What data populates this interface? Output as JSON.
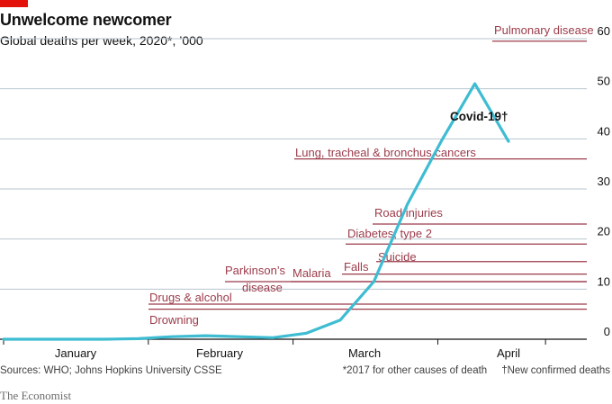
{
  "header": {
    "title": "Unwelcome newcomer",
    "subtitle": "Global deaths per week, 2020*, ’000"
  },
  "footer": {
    "source": "Sources: WHO; Johns Hopkins University CSSE",
    "footnote": "*2017 for other causes of death",
    "footnote2": "†New confirmed deaths",
    "brand": "The Economist"
  },
  "colors": {
    "covid": "#3ebcd2",
    "reference": "#9b3b4a",
    "grid": "#b7c6cf",
    "axis": "#121212"
  },
  "chart_data": {
    "type": "line",
    "title": "Unwelcome newcomer",
    "subtitle": "Global deaths per week, 2020*, ’000",
    "xlabel": "",
    "ylabel": "",
    "x_ticks": [
      "January",
      "February",
      "March",
      "April"
    ],
    "ylim": [
      0,
      60
    ],
    "y_ticks": [
      0,
      10,
      20,
      30,
      40,
      50,
      60
    ],
    "y_tick_labels": [
      "0",
      "10",
      "20",
      "30",
      "40",
      "50",
      "60"
    ],
    "grid": true,
    "series": [
      {
        "name": "Covid-19†",
        "x": [
          "Jan 1",
          "Jan 8",
          "Jan 15",
          "Jan 22",
          "Jan 29",
          "Feb 5",
          "Feb 12",
          "Feb 19",
          "Feb 26",
          "Mar 4",
          "Mar 11",
          "Mar 18",
          "Mar 25",
          "Apr 1",
          "Apr 8",
          "Apr 15"
        ],
        "values": [
          0,
          0,
          0,
          0,
          0.1,
          0.5,
          0.7,
          0.5,
          0.3,
          1.2,
          3.8,
          11.5,
          27,
          39.5,
          51,
          39.5
        ]
      }
    ],
    "reference_lines": [
      {
        "label": "Pulmonary disease",
        "value": 59.5
      },
      {
        "label": "Lung, tracheal & bronchus cancers",
        "value": 36
      },
      {
        "label": "Road injuries",
        "value": 23
      },
      {
        "label": "Diabetes, type 2",
        "value": 19
      },
      {
        "label": "Suicide",
        "value": 15.5
      },
      {
        "label": "Falls",
        "value": 13
      },
      {
        "label": "Malaria",
        "value": 11.5
      },
      {
        "label": "Parkinson’s disease",
        "value": 11.5
      },
      {
        "label": "Drugs & alcohol",
        "value": 7
      },
      {
        "label": "Drowning",
        "value": 6
      }
    ]
  }
}
